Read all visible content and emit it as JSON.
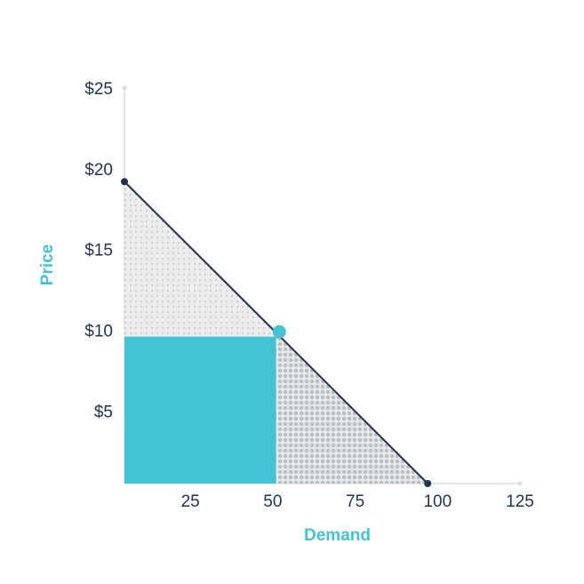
{
  "chart_data": {
    "type": "line",
    "xlabel": "Demand",
    "ylabel": "Price",
    "x_ticks": [
      "25",
      "50",
      "75",
      "100",
      "125"
    ],
    "x_tick_values": [
      25,
      50,
      75,
      100,
      125
    ],
    "y_ticks": [
      "$5",
      "$10",
      "$15",
      "$20",
      "$25"
    ],
    "y_tick_values": [
      5,
      10,
      15,
      20,
      25
    ],
    "xlim": [
      5,
      125
    ],
    "ylim": [
      0.5,
      25
    ],
    "series": [
      {
        "x": [
          5,
          97
        ],
        "y": [
          19.2,
          0.5
        ]
      }
    ],
    "highlighted_point": {
      "x": 52,
      "y": 9.9
    },
    "revenue_rectangle": {
      "x": [
        5,
        51
      ],
      "y": [
        0.5,
        9.6
      ]
    },
    "grid": false
  },
  "colors": {
    "line": "#1d3352",
    "accent": "#43c3d3",
    "tick_text": "#1d3352",
    "axis_line": "#dddddd",
    "dots_light": "#cfd2d6",
    "dots_dark": "#b9bcc1"
  }
}
